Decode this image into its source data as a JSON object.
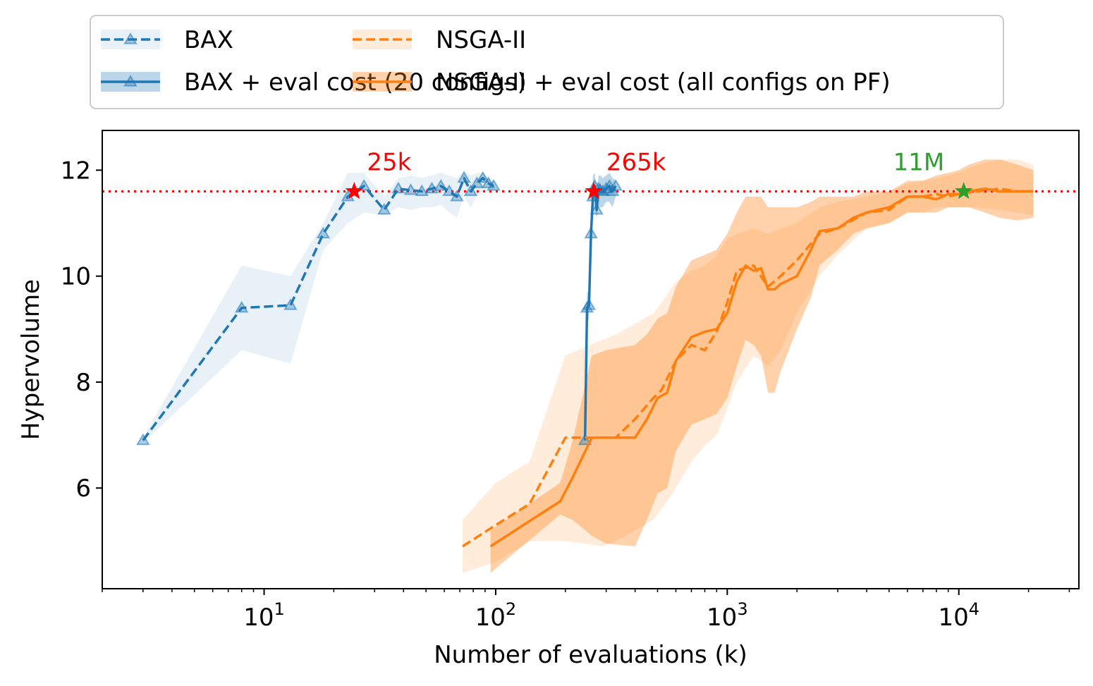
{
  "chart_data": {
    "type": "line",
    "xscale": "log",
    "xlabel": "Number of evaluations (k)",
    "ylabel": "Hypervolume",
    "xlim": [
      2,
      33000
    ],
    "ylim": [
      4.1,
      12.75
    ],
    "x_ticks": [
      {
        "value": 10,
        "base": "10",
        "exp": "1"
      },
      {
        "value": 100,
        "base": "10",
        "exp": "2"
      },
      {
        "value": 1000,
        "base": "10",
        "exp": "3"
      },
      {
        "value": 10000,
        "base": "10",
        "exp": "4"
      }
    ],
    "y_ticks": [
      {
        "value": 6,
        "label": "6"
      },
      {
        "value": 8,
        "label": "8"
      },
      {
        "value": 10,
        "label": "10"
      },
      {
        "value": 12,
        "label": "12"
      }
    ],
    "grid": false,
    "legend_position": "top (above plot)",
    "reference_line": {
      "y": 11.6,
      "color": "#ff0000",
      "style": "dotted"
    },
    "colors": {
      "blue": "#1f77b4",
      "orange": "#ff7f0e",
      "red": "#ff0000",
      "green": "#2ca02c"
    },
    "series": [
      {
        "name": "BAX",
        "color": "#1f77b4",
        "linestyle": "dashed",
        "marker": "triangle",
        "band_opacity": 0.1,
        "x": [
          3,
          8,
          13,
          18,
          23,
          27,
          33,
          38,
          43,
          48,
          53,
          58,
          63,
          68,
          73,
          78,
          83,
          88,
          93,
          98
        ],
        "y": [
          6.9,
          9.4,
          9.45,
          10.8,
          11.5,
          11.7,
          11.25,
          11.65,
          11.62,
          11.6,
          11.65,
          11.7,
          11.6,
          11.5,
          11.85,
          11.6,
          11.75,
          11.85,
          11.75,
          11.7
        ],
        "lower": [
          6.85,
          8.6,
          8.35,
          10.5,
          11.0,
          11.2,
          11.15,
          11.3,
          11.25,
          11.3,
          11.3,
          11.35,
          11.2,
          11.1,
          11.5,
          11.3,
          11.5,
          11.6,
          11.6,
          11.6
        ],
        "upper": [
          6.95,
          10.2,
          10.0,
          11.0,
          11.95,
          11.95,
          11.5,
          11.85,
          11.9,
          11.85,
          11.9,
          11.95,
          11.9,
          11.85,
          12.0,
          11.9,
          11.95,
          11.95,
          11.85,
          11.8
        ]
      },
      {
        "name": "BAX + eval cost (20 configs)",
        "color": "#1f77b4",
        "linestyle": "solid",
        "marker": "triangle",
        "band_opacity": 0.3,
        "x": [
          243,
          248,
          253,
          258,
          263,
          268,
          273,
          278,
          283,
          290,
          300,
          310,
          320,
          330
        ],
        "y": [
          6.9,
          9.4,
          9.45,
          10.8,
          11.5,
          11.7,
          11.25,
          11.65,
          11.62,
          11.6,
          11.65,
          11.7,
          11.6,
          11.7
        ],
        "lower": [
          6.85,
          9.1,
          9.2,
          10.6,
          11.2,
          11.3,
          11.1,
          11.3,
          11.3,
          11.3,
          11.4,
          11.4,
          11.3,
          11.5
        ],
        "upper": [
          6.95,
          9.7,
          9.7,
          11.0,
          11.9,
          11.95,
          11.5,
          11.9,
          11.9,
          11.85,
          11.9,
          11.95,
          11.85,
          11.8
        ]
      },
      {
        "name": "NSGA-II",
        "color": "#ff7f0e",
        "linestyle": "dashed",
        "marker": "none",
        "band_opacity": 0.15,
        "x": [
          72,
          100,
          140,
          200,
          290,
          330,
          400,
          480,
          520,
          600,
          700,
          800,
          900,
          1000,
          1100,
          1300,
          1500,
          1700,
          2000,
          2500,
          3000,
          4000,
          5000,
          6000,
          7000,
          8000,
          9000,
          10000,
          12000,
          15000,
          18000,
          21000
        ],
        "y": [
          4.9,
          5.3,
          5.7,
          6.95,
          6.95,
          6.95,
          7.3,
          7.7,
          7.85,
          8.4,
          8.7,
          8.6,
          8.95,
          9.5,
          10.1,
          10.2,
          9.8,
          10.0,
          10.3,
          10.8,
          10.9,
          11.2,
          11.25,
          11.5,
          11.5,
          11.55,
          11.5,
          11.55,
          11.6,
          11.65,
          11.6,
          11.6
        ],
        "lower": [
          4.4,
          4.6,
          5.0,
          5.0,
          4.9,
          5.0,
          5.2,
          5.4,
          5.6,
          6.0,
          6.5,
          6.8,
          7.0,
          7.5,
          8.0,
          8.5,
          8.3,
          8.6,
          9.3,
          10.0,
          10.4,
          10.9,
          11.0,
          11.2,
          11.2,
          11.3,
          11.3,
          11.3,
          11.3,
          11.25,
          11.2,
          11.15
        ],
        "upper": [
          5.4,
          6.1,
          6.5,
          8.5,
          8.8,
          8.9,
          9.1,
          9.3,
          9.5,
          9.9,
          10.1,
          10.2,
          10.4,
          10.7,
          10.8,
          10.9,
          10.8,
          10.9,
          11.0,
          11.3,
          11.4,
          11.5,
          11.6,
          11.75,
          11.8,
          11.85,
          11.9,
          11.95,
          12.1,
          12.2,
          12.2,
          12.1
        ]
      },
      {
        "name": "NSGA-II + eval cost (all configs on PF)",
        "color": "#ff7f0e",
        "linestyle": "solid",
        "marker": "none",
        "band_opacity": 0.35,
        "x": [
          95,
          190,
          215,
          260,
          300,
          400,
          450,
          500,
          550,
          600,
          700,
          800,
          900,
          1000,
          1100,
          1200,
          1300,
          1400,
          1500,
          1600,
          1700,
          2000,
          2300,
          2500,
          3000,
          3500,
          4000,
          5000,
          6000,
          7000,
          8000,
          9000,
          10000,
          11000,
          13000,
          15000,
          18000,
          21000
        ],
        "y": [
          4.9,
          5.75,
          6.2,
          6.95,
          6.95,
          6.95,
          7.3,
          7.7,
          7.8,
          8.4,
          8.85,
          8.95,
          9.0,
          9.3,
          9.9,
          10.2,
          10.1,
          10.15,
          9.75,
          9.75,
          9.85,
          10.0,
          10.5,
          10.85,
          10.9,
          11.1,
          11.2,
          11.3,
          11.5,
          11.5,
          11.45,
          11.55,
          11.55,
          11.6,
          11.65,
          11.6,
          11.6,
          11.6
        ],
        "lower": [
          4.4,
          5.5,
          5.4,
          5.1,
          4.95,
          4.9,
          5.4,
          5.9,
          6.0,
          6.7,
          7.2,
          7.3,
          7.4,
          7.7,
          8.3,
          8.8,
          8.7,
          8.5,
          7.8,
          7.8,
          8.2,
          9.0,
          9.6,
          10.2,
          10.5,
          10.8,
          10.9,
          11.0,
          11.2,
          11.2,
          11.2,
          11.3,
          11.3,
          11.3,
          11.2,
          11.1,
          11.05,
          11.1
        ],
        "upper": [
          5.2,
          6.1,
          6.9,
          8.5,
          8.6,
          8.7,
          8.9,
          9.2,
          9.3,
          9.8,
          10.3,
          10.4,
          10.5,
          10.8,
          11.2,
          11.5,
          11.5,
          11.5,
          11.3,
          11.3,
          11.3,
          11.3,
          11.4,
          11.5,
          11.5,
          11.5,
          11.6,
          11.6,
          11.8,
          11.8,
          11.9,
          11.95,
          12.0,
          12.1,
          12.2,
          12.2,
          12.1,
          12.0
        ]
      }
    ],
    "annotations": [
      {
        "text": "25k",
        "x": 24.5,
        "y": 11.6,
        "color": "#ff0000",
        "marker": "star",
        "label_dx": 18
      },
      {
        "text": "265k",
        "x": 265,
        "y": 11.6,
        "color": "#ff0000",
        "marker": "star",
        "label_dx": 18
      },
      {
        "text": "11M",
        "x": 10500,
        "y": 11.6,
        "color": "#2ca02c",
        "marker": "star",
        "label_dx": -100
      }
    ]
  }
}
